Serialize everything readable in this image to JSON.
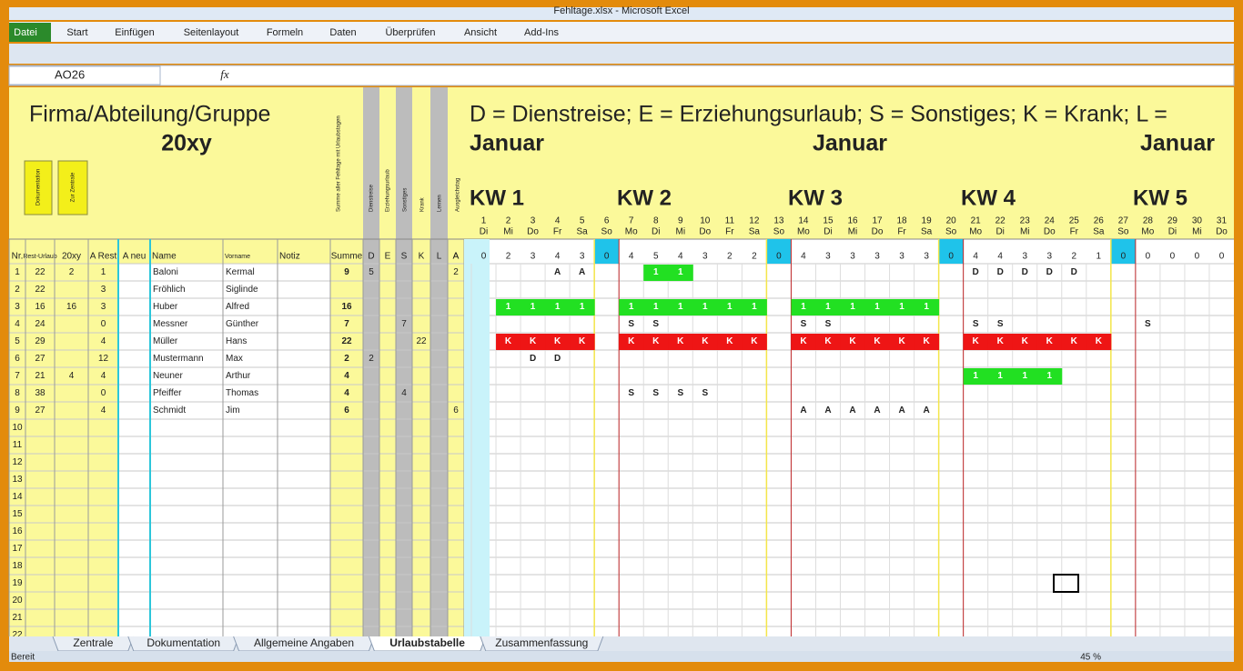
{
  "window": {
    "title": "Fehltage.xlsx - Microsoft Excel"
  },
  "ribbon": {
    "file_tab": "Datei",
    "tabs": [
      "Start",
      "Einfügen",
      "Seitenlayout",
      "Formeln",
      "Daten",
      "Überprüfen",
      "Ansicht",
      "Add-Ins"
    ]
  },
  "formula_bar": {
    "name_box": "AO26",
    "fx": "fx"
  },
  "sheet": {
    "title": "Firma/Abteilung/Gruppe",
    "year": "20xy",
    "buttons": [
      "Dokumentation",
      "Zur Zentrale"
    ],
    "rotated_headers": [
      "Summe aller Fehltage mit Urlaubstagen",
      "Dienstreise",
      "Erziehungsurlaub",
      "Sonstiges",
      "Krank",
      "Lernen",
      "Ausgleichstag"
    ],
    "headers": [
      "Nr.",
      "Rest-Urlaub",
      "20xy",
      "A Rest",
      "A neu",
      "Name",
      "Vorname",
      "Notiz",
      "Summe",
      "D",
      "E",
      "S",
      "K",
      "L",
      "A"
    ],
    "rows": [
      [
        1,
        22,
        2,
        1,
        null,
        "Baloni",
        "Kermal",
        null,
        9,
        5,
        null,
        null,
        null,
        null,
        2
      ],
      [
        2,
        22,
        null,
        3,
        null,
        "Fröhlich",
        "Siglinde",
        null,
        null,
        null,
        null,
        null,
        null,
        null,
        null
      ],
      [
        3,
        16,
        16,
        3,
        null,
        "Huber",
        "Alfred",
        null,
        16,
        null,
        null,
        null,
        null,
        null,
        null
      ],
      [
        4,
        24,
        null,
        0,
        null,
        "Messner",
        "Günther",
        null,
        7,
        null,
        null,
        7,
        null,
        null,
        null
      ],
      [
        5,
        29,
        null,
        4,
        null,
        "Müller",
        "Hans",
        null,
        22,
        null,
        null,
        null,
        22,
        null,
        null
      ],
      [
        6,
        27,
        null,
        12,
        null,
        "Mustermann",
        "Max",
        null,
        2,
        2,
        null,
        null,
        null,
        null,
        null
      ],
      [
        7,
        21,
        4,
        4,
        null,
        "Neuner",
        "Arthur",
        null,
        4,
        null,
        null,
        null,
        null,
        null,
        null
      ],
      [
        8,
        38,
        null,
        0,
        null,
        "Pfeiffer",
        "Thomas",
        null,
        4,
        null,
        null,
        4,
        null,
        null,
        null
      ],
      [
        9,
        27,
        null,
        4,
        null,
        "Schmidt",
        "Jim",
        null,
        6,
        null,
        null,
        null,
        null,
        null,
        6
      ],
      [
        10
      ],
      [
        11
      ],
      [
        12
      ],
      [
        13
      ],
      [
        14
      ],
      [
        15
      ],
      [
        16
      ],
      [
        17
      ],
      [
        18
      ],
      [
        19
      ],
      [
        20
      ],
      [
        21
      ],
      [
        22
      ]
    ],
    "legend": "D = Dienstreise; E = Erziehungsurlaub; S = Sonstiges; K = Krank; L =",
    "months": [
      "Januar",
      "Januar",
      "Januar"
    ],
    "weeks": [
      "KW 1",
      "KW 2",
      "KW 3",
      "KW 4",
      "KW 5"
    ],
    "days": [
      1,
      2,
      3,
      4,
      5,
      6,
      7,
      8,
      9,
      10,
      11,
      12,
      13,
      14,
      15,
      16,
      17,
      18,
      19,
      20,
      21,
      22,
      23,
      24,
      25,
      26,
      27,
      28,
      29,
      30,
      31
    ],
    "weekdays": [
      "Di",
      "Mi",
      "Do",
      "Fr",
      "Sa",
      "So",
      "Mo",
      "Di",
      "Mi",
      "Do",
      "Fr",
      "Sa",
      "So",
      "Mo",
      "Di",
      "Mi",
      "Do",
      "Fr",
      "Sa",
      "So",
      "Mo",
      "Di",
      "Mi",
      "Do",
      "Fr",
      "Sa",
      "So",
      "Mo",
      "Di",
      "Mi",
      "Do"
    ],
    "counts_header": "A",
    "counts": [
      0,
      2,
      3,
      4,
      3,
      0,
      4,
      5,
      4,
      3,
      2,
      2,
      0,
      4,
      3,
      3,
      3,
      3,
      3,
      0,
      4,
      4,
      3,
      3,
      2,
      1,
      0,
      0,
      0,
      0,
      0
    ],
    "calendar": [
      [
        null,
        null,
        null,
        "A",
        "A",
        null,
        null,
        "1",
        "1",
        null,
        null,
        null,
        null,
        null,
        null,
        null,
        null,
        null,
        null,
        null,
        "D",
        "D",
        "D",
        "D",
        "D",
        null,
        null,
        null,
        null,
        null,
        null
      ],
      [
        null,
        null,
        null,
        null,
        null,
        null,
        null,
        null,
        null,
        null,
        null,
        null,
        null,
        null,
        null,
        null,
        null,
        null,
        null,
        null,
        null,
        null,
        null,
        null,
        null,
        null,
        null,
        null,
        null,
        null,
        null
      ],
      [
        null,
        "1",
        "1",
        "1",
        "1",
        null,
        "1",
        "1",
        "1",
        "1",
        "1",
        "1",
        null,
        "1",
        "1",
        "1",
        "1",
        "1",
        "1",
        null,
        null,
        null,
        null,
        null,
        null,
        null,
        null,
        null,
        null,
        null,
        null
      ],
      [
        null,
        null,
        null,
        null,
        null,
        null,
        "S",
        "S",
        null,
        null,
        null,
        null,
        null,
        "S",
        "S",
        null,
        null,
        null,
        null,
        null,
        "S",
        "S",
        null,
        null,
        null,
        null,
        null,
        "S",
        null,
        null,
        null
      ],
      [
        null,
        "K",
        "K",
        "K",
        "K",
        null,
        "K",
        "K",
        "K",
        "K",
        "K",
        "K",
        null,
        "K",
        "K",
        "K",
        "K",
        "K",
        "K",
        null,
        "K",
        "K",
        "K",
        "K",
        "K",
        "K",
        null,
        null,
        null,
        null,
        null
      ],
      [
        null,
        null,
        "D",
        "D",
        null,
        null,
        null,
        null,
        null,
        null,
        null,
        null,
        null,
        null,
        null,
        null,
        null,
        null,
        null,
        null,
        null,
        null,
        null,
        null,
        null,
        null,
        null,
        null,
        null,
        null,
        null
      ],
      [
        null,
        null,
        null,
        null,
        null,
        null,
        null,
        null,
        null,
        null,
        null,
        null,
        null,
        null,
        null,
        null,
        null,
        null,
        null,
        null,
        "1",
        "1",
        "1",
        "1",
        null,
        null,
        null,
        null,
        null,
        null,
        null
      ],
      [
        null,
        null,
        null,
        null,
        null,
        null,
        "S",
        "S",
        "S",
        "S",
        null,
        null,
        null,
        null,
        null,
        null,
        null,
        null,
        null,
        null,
        null,
        null,
        null,
        null,
        null,
        null,
        null,
        null,
        null,
        null,
        null
      ],
      [
        null,
        null,
        null,
        null,
        null,
        null,
        null,
        null,
        null,
        null,
        null,
        null,
        null,
        "A",
        "A",
        "A",
        "A",
        "A",
        "A",
        null,
        null,
        null,
        null,
        null,
        null,
        null,
        null,
        null,
        null,
        null,
        null
      ]
    ],
    "cell_colors": {
      "1": "#22e022",
      "K": "#ee1515"
    }
  },
  "sheet_tabs": {
    "tabs": [
      "Zentrale",
      "Dokumentation",
      "Allgemeine Angaben",
      "Urlaubstabelle",
      "Zusammenfassung"
    ],
    "active": 3
  },
  "status": {
    "ready": "Bereit",
    "zoom": "45 %"
  }
}
